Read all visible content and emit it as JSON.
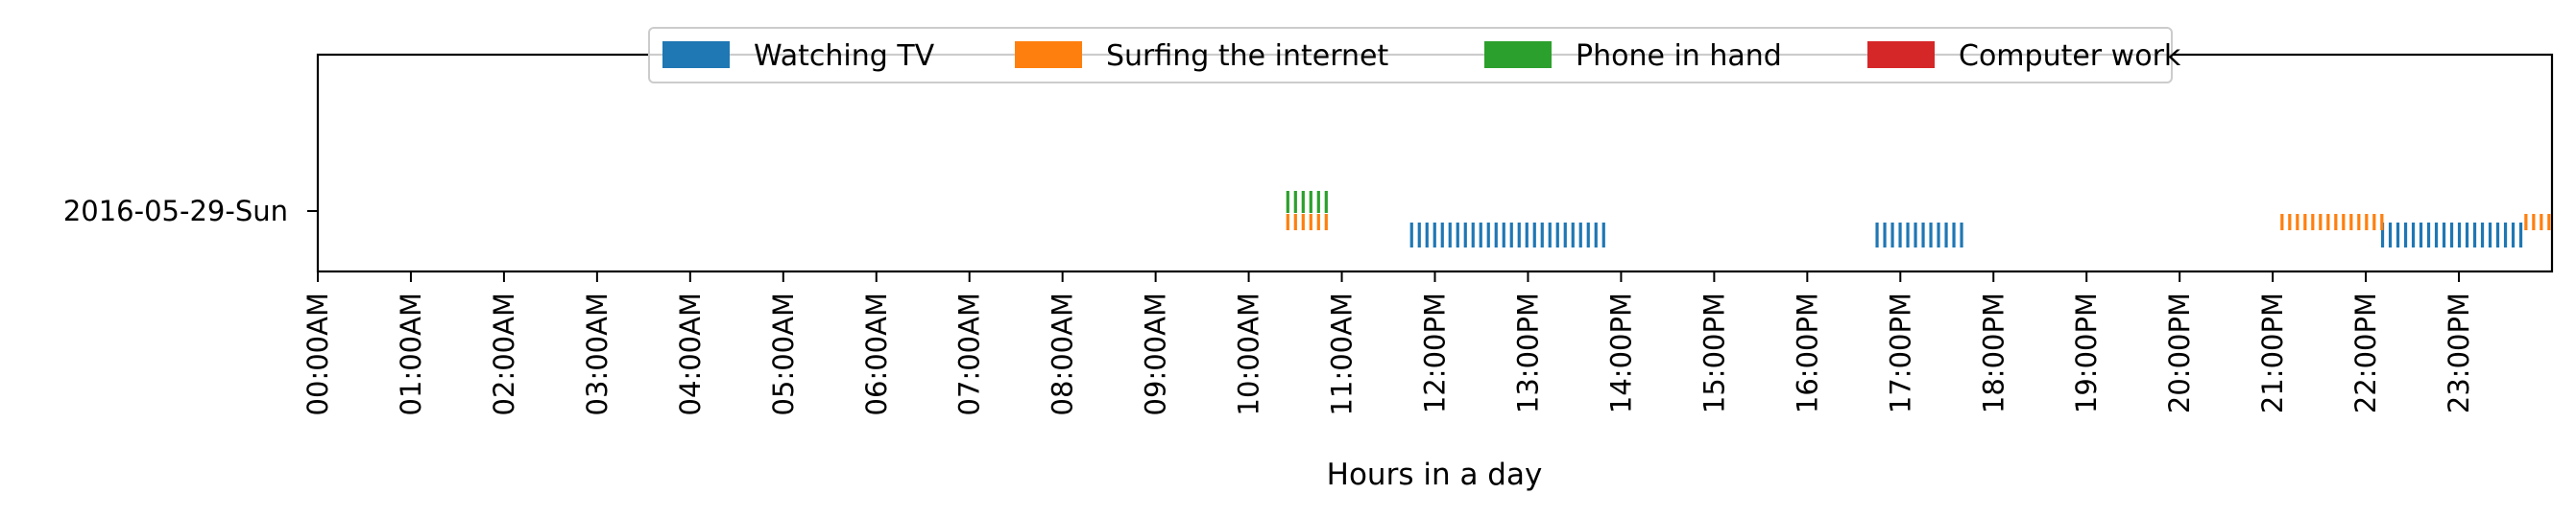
{
  "chart_data": {
    "type": "timeline",
    "xlabel": "Hours in a day",
    "xlim": [
      0,
      24
    ],
    "x_ticks": [
      {
        "value": 0,
        "label": "00:00AM"
      },
      {
        "value": 1,
        "label": "01:00AM"
      },
      {
        "value": 2,
        "label": "02:00AM"
      },
      {
        "value": 3,
        "label": "03:00AM"
      },
      {
        "value": 4,
        "label": "04:00AM"
      },
      {
        "value": 5,
        "label": "05:00AM"
      },
      {
        "value": 6,
        "label": "06:00AM"
      },
      {
        "value": 7,
        "label": "07:00AM"
      },
      {
        "value": 8,
        "label": "08:00AM"
      },
      {
        "value": 9,
        "label": "09:00AM"
      },
      {
        "value": 10,
        "label": "10:00AM"
      },
      {
        "value": 11,
        "label": "11:00AM"
      },
      {
        "value": 12,
        "label": "12:00PM"
      },
      {
        "value": 13,
        "label": "13:00PM"
      },
      {
        "value": 14,
        "label": "14:00PM"
      },
      {
        "value": 15,
        "label": "15:00PM"
      },
      {
        "value": 16,
        "label": "16:00PM"
      },
      {
        "value": 17,
        "label": "17:00PM"
      },
      {
        "value": 18,
        "label": "18:00PM"
      },
      {
        "value": 19,
        "label": "19:00PM"
      },
      {
        "value": 20,
        "label": "20:00PM"
      },
      {
        "value": 21,
        "label": "21:00PM"
      },
      {
        "value": 22,
        "label": "22:00PM"
      },
      {
        "value": 23,
        "label": "23:00PM"
      }
    ],
    "y_categories": [
      "2016-05-29-Sun"
    ],
    "legend_position": "top-center",
    "series": [
      {
        "name": "Watching TV",
        "color": "#1f77b4",
        "intervals": [
          [
            11.75,
            13.85
          ],
          [
            16.75,
            17.72
          ],
          [
            22.18,
            23.68
          ]
        ]
      },
      {
        "name": "Surfing the internet",
        "color": "#ff7f0e",
        "intervals": [
          [
            10.42,
            10.88
          ],
          [
            21.1,
            22.22
          ],
          [
            23.72,
            24.0
          ]
        ]
      },
      {
        "name": "Phone in hand",
        "color": "#2ca02c",
        "intervals": [
          [
            10.42,
            10.88
          ]
        ]
      },
      {
        "name": "Computer work",
        "color": "#d62728",
        "intervals": []
      }
    ]
  }
}
